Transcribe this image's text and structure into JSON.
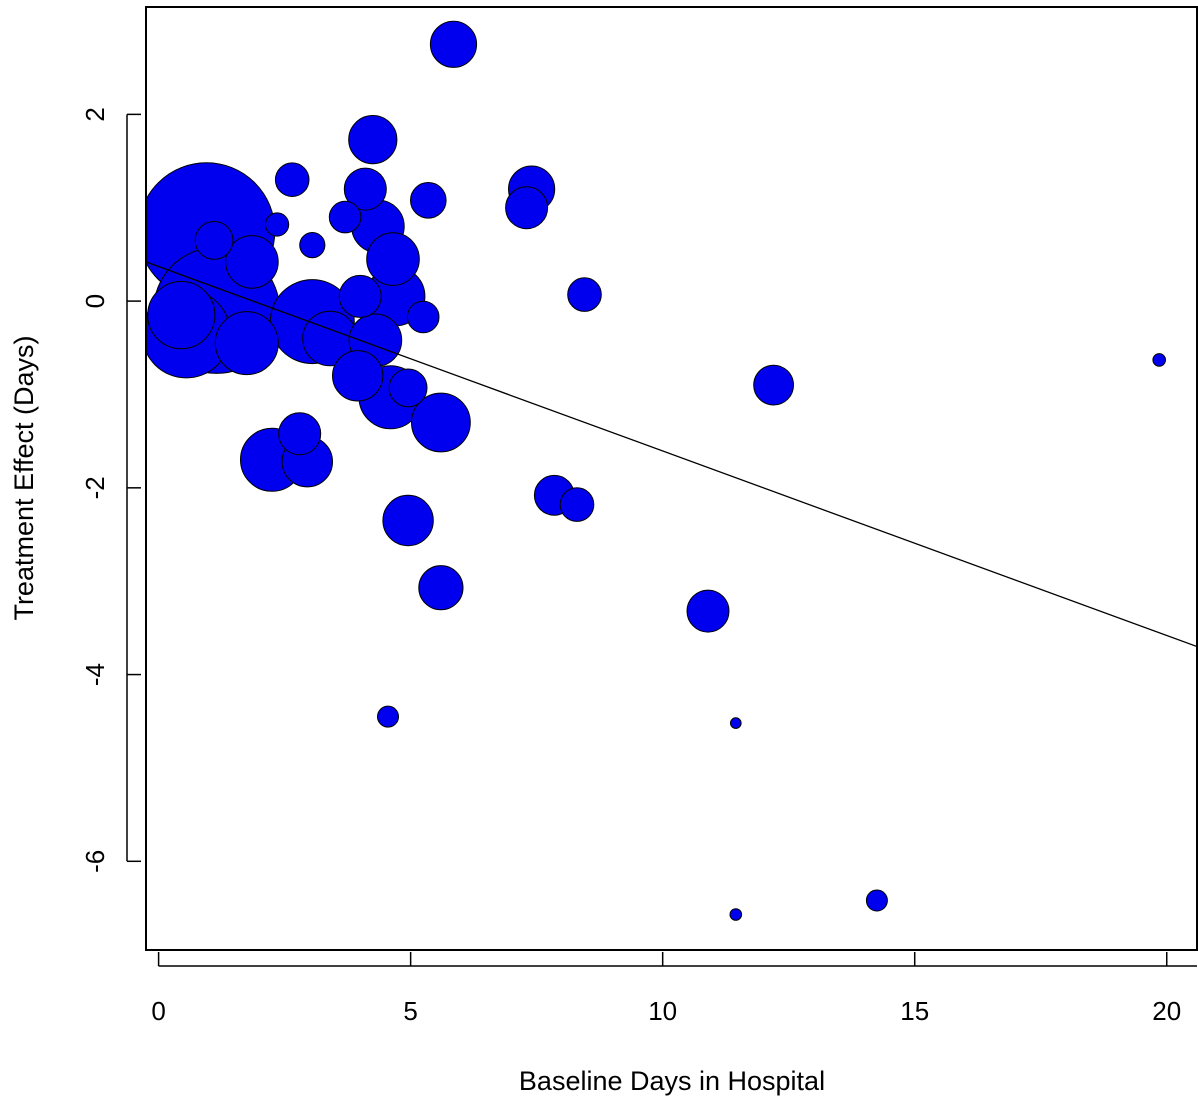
{
  "chart_data": {
    "type": "scatter",
    "title": "",
    "xlabel": "Baseline Days in Hospital",
    "ylabel": "Treatment Effect (Days)",
    "x_ticks": [
      0,
      5,
      10,
      15,
      20
    ],
    "x_tick_labels": [
      "0",
      "5",
      "10",
      "15",
      "20"
    ],
    "y_ticks": [
      2,
      0,
      -2,
      -4,
      -6
    ],
    "y_tick_labels": [
      "2",
      "0",
      "-2",
      "-4",
      "-6"
    ],
    "xlim": [
      -0.25,
      20.6
    ],
    "ylim": [
      -6.95,
      3.15
    ],
    "grid": false,
    "legend": "none",
    "marker_color": "#0000ee",
    "marker_edge_color": "#000000",
    "regression_line": {
      "x": [
        -0.25,
        20.6
      ],
      "y": [
        0.42,
        -3.7
      ]
    },
    "series": [
      {
        "points": [
          {
            "x": 0.95,
            "y": 0.75,
            "weight": 6.5
          },
          {
            "x": 1.1,
            "y": 0.65,
            "weight": 1.8
          },
          {
            "x": 1.85,
            "y": 0.42,
            "weight": 2.5
          },
          {
            "x": 0.55,
            "y": -0.35,
            "weight": 4.2
          },
          {
            "x": 1.15,
            "y": -0.1,
            "weight": 6.0
          },
          {
            "x": 1.75,
            "y": -0.45,
            "weight": 3.0
          },
          {
            "x": 0.45,
            "y": -0.15,
            "weight": 3.2
          },
          {
            "x": 2.35,
            "y": 0.82,
            "weight": 1.1
          },
          {
            "x": 2.65,
            "y": 1.3,
            "weight": 1.6
          },
          {
            "x": 3.05,
            "y": 0.6,
            "weight": 1.2
          },
          {
            "x": 3.05,
            "y": -0.22,
            "weight": 4.0
          },
          {
            "x": 3.4,
            "y": -0.4,
            "weight": 2.6
          },
          {
            "x": 3.7,
            "y": 0.9,
            "weight": 1.5
          },
          {
            "x": 4.1,
            "y": 1.2,
            "weight": 2.0
          },
          {
            "x": 4.25,
            "y": 1.73,
            "weight": 2.3
          },
          {
            "x": 4.35,
            "y": 0.8,
            "weight": 2.5
          },
          {
            "x": 4.65,
            "y": 0.45,
            "weight": 2.5
          },
          {
            "x": 4.0,
            "y": 0.05,
            "weight": 2.0
          },
          {
            "x": 4.7,
            "y": 0.05,
            "weight": 2.8
          },
          {
            "x": 4.3,
            "y": -0.42,
            "weight": 2.5
          },
          {
            "x": 3.95,
            "y": -0.8,
            "weight": 2.4
          },
          {
            "x": 4.6,
            "y": -1.03,
            "weight": 3.0
          },
          {
            "x": 4.95,
            "y": -0.93,
            "weight": 1.8
          },
          {
            "x": 5.25,
            "y": -0.17,
            "weight": 1.5
          },
          {
            "x": 5.35,
            "y": 1.08,
            "weight": 1.7
          },
          {
            "x": 5.85,
            "y": 2.75,
            "weight": 2.2
          },
          {
            "x": 5.6,
            "y": -1.3,
            "weight": 2.8
          },
          {
            "x": 2.25,
            "y": -1.7,
            "weight": 3.0
          },
          {
            "x": 2.8,
            "y": -1.42,
            "weight": 2.0
          },
          {
            "x": 2.95,
            "y": -1.72,
            "weight": 2.4
          },
          {
            "x": 4.95,
            "y": -2.35,
            "weight": 2.4
          },
          {
            "x": 5.6,
            "y": -3.07,
            "weight": 2.1
          },
          {
            "x": 4.55,
            "y": -4.45,
            "weight": 1.0
          },
          {
            "x": 7.4,
            "y": 1.2,
            "weight": 2.2
          },
          {
            "x": 7.3,
            "y": 1.0,
            "weight": 2.0
          },
          {
            "x": 8.45,
            "y": 0.07,
            "weight": 1.6
          },
          {
            "x": 7.85,
            "y": -2.08,
            "weight": 1.9
          },
          {
            "x": 8.3,
            "y": -2.18,
            "weight": 1.6
          },
          {
            "x": 12.2,
            "y": -0.9,
            "weight": 1.9
          },
          {
            "x": 10.9,
            "y": -3.32,
            "weight": 2.0
          },
          {
            "x": 11.45,
            "y": -4.52,
            "weight": 0.5
          },
          {
            "x": 11.45,
            "y": -6.57,
            "weight": 0.55
          },
          {
            "x": 14.25,
            "y": -6.42,
            "weight": 1.0
          },
          {
            "x": 19.85,
            "y": -0.63,
            "weight": 0.6
          }
        ]
      }
    ]
  }
}
